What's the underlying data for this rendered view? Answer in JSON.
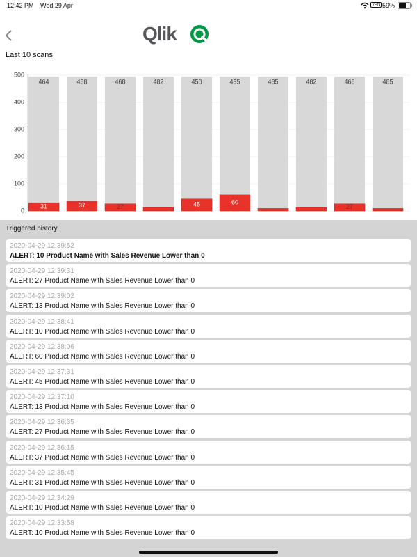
{
  "status_bar": {
    "time": "12:42 PM",
    "date": "Wed 29 Apr",
    "vpn": "VPN",
    "battery": "59%"
  },
  "header": {
    "logo": "Qlik"
  },
  "section_title": "Last 10 scans",
  "chart_data": {
    "type": "stacked-bar",
    "series": [
      {
        "color": "#e8322a",
        "values": [
          31,
          37,
          27,
          13,
          45,
          60,
          10,
          13,
          27,
          10
        ]
      },
      {
        "color": "#d8d8d8",
        "values": [
          464,
          458,
          468,
          482,
          450,
          435,
          485,
          482,
          468,
          485
        ]
      }
    ],
    "ylim": [
      0,
      500
    ],
    "yticks": [
      0,
      100,
      200,
      300,
      400,
      500
    ],
    "grid": true
  },
  "history": {
    "title": "Triggered history",
    "items": [
      {
        "time": "2020-04-29 12:39:52",
        "message": "ALERT: 10 Product Name with Sales Revenue Lower than 0"
      },
      {
        "time": "2020-04-29 12:39:31",
        "message": "ALERT: 27 Product Name with Sales Revenue Lower than 0"
      },
      {
        "time": "2020-04-29 12:39:02",
        "message": "ALERT: 13 Product Name with Sales Revenue Lower than 0"
      },
      {
        "time": "2020-04-29 12:38:41",
        "message": "ALERT: 10 Product Name with Sales Revenue Lower than 0"
      },
      {
        "time": "2020-04-29 12:38:06",
        "message": "ALERT: 60 Product Name with Sales Revenue Lower than 0"
      },
      {
        "time": "2020-04-29 12:37:31",
        "message": "ALERT: 45 Product Name with Sales Revenue Lower than 0"
      },
      {
        "time": "2020-04-29 12:37:10",
        "message": "ALERT: 13 Product Name with Sales Revenue Lower than 0"
      },
      {
        "time": "2020-04-29 12:36:35",
        "message": "ALERT: 27 Product Name with Sales Revenue Lower than 0"
      },
      {
        "time": "2020-04-29 12:36:15",
        "message": "ALERT: 37 Product Name with Sales Revenue Lower than 0"
      },
      {
        "time": "2020-04-29 12:35:45",
        "message": "ALERT: 31 Product Name with Sales Revenue Lower than 0"
      },
      {
        "time": "2020-04-29 12:34:29",
        "message": "ALERT: 10 Product Name with Sales Revenue Lower than 0"
      },
      {
        "time": "2020-04-29 12:33:58",
        "message": "ALERT: 10 Product Name with Sales Revenue Lower than 0"
      }
    ]
  }
}
